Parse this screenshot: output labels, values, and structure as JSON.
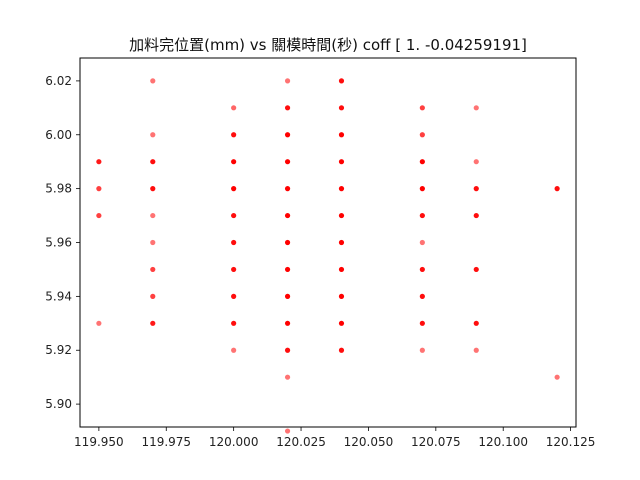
{
  "chart_data": {
    "type": "scatter",
    "title": "加料完位置(mm) vs 關模時間(秒) coff [ 1.        -0.04259191]",
    "xlabel": "",
    "ylabel": "",
    "xlim": [
      119.943,
      120.127
    ],
    "ylim": [
      5.8915,
      6.0285
    ],
    "x_ticks": [
      119.95,
      119.975,
      120.0,
      120.025,
      120.05,
      120.075,
      120.1,
      120.125
    ],
    "x_tick_labels": [
      "119.950",
      "119.975",
      "120.000",
      "120.025",
      "120.050",
      "120.075",
      "120.100",
      "120.125"
    ],
    "y_ticks": [
      5.9,
      5.92,
      5.94,
      5.96,
      5.98,
      6.0,
      6.02
    ],
    "y_tick_labels": [
      "5.90",
      "5.92",
      "5.94",
      "5.96",
      "5.98",
      "6.00",
      "6.02"
    ],
    "grid": false,
    "marker_color": "#ff0000",
    "points": [
      [
        119.95,
        5.99
      ],
      [
        119.95,
        5.98
      ],
      [
        119.95,
        5.97
      ],
      [
        119.95,
        5.93
      ],
      [
        119.97,
        6.02
      ],
      [
        119.97,
        6.0
      ],
      [
        119.97,
        5.99
      ],
      [
        119.97,
        5.98
      ],
      [
        119.97,
        5.97
      ],
      [
        119.97,
        5.96
      ],
      [
        119.97,
        5.95
      ],
      [
        119.97,
        5.94
      ],
      [
        119.97,
        5.93
      ],
      [
        120.0,
        6.01
      ],
      [
        120.0,
        6.0
      ],
      [
        120.0,
        5.99
      ],
      [
        120.0,
        5.98
      ],
      [
        120.0,
        5.97
      ],
      [
        120.0,
        5.96
      ],
      [
        120.0,
        5.95
      ],
      [
        120.0,
        5.94
      ],
      [
        120.0,
        5.93
      ],
      [
        120.0,
        5.92
      ],
      [
        120.02,
        6.02
      ],
      [
        120.02,
        6.01
      ],
      [
        120.02,
        6.0
      ],
      [
        120.02,
        5.99
      ],
      [
        120.02,
        5.98
      ],
      [
        120.02,
        5.97
      ],
      [
        120.02,
        5.96
      ],
      [
        120.02,
        5.95
      ],
      [
        120.02,
        5.94
      ],
      [
        120.02,
        5.93
      ],
      [
        120.02,
        5.92
      ],
      [
        120.02,
        5.91
      ],
      [
        120.02,
        5.89
      ],
      [
        120.04,
        6.02
      ],
      [
        120.04,
        6.01
      ],
      [
        120.04,
        6.0
      ],
      [
        120.04,
        5.99
      ],
      [
        120.04,
        5.98
      ],
      [
        120.04,
        5.97
      ],
      [
        120.04,
        5.96
      ],
      [
        120.04,
        5.95
      ],
      [
        120.04,
        5.94
      ],
      [
        120.04,
        5.93
      ],
      [
        120.04,
        5.92
      ],
      [
        120.07,
        6.01
      ],
      [
        120.07,
        6.0
      ],
      [
        120.07,
        5.99
      ],
      [
        120.07,
        5.98
      ],
      [
        120.07,
        5.97
      ],
      [
        120.07,
        5.96
      ],
      [
        120.07,
        5.95
      ],
      [
        120.07,
        5.94
      ],
      [
        120.07,
        5.93
      ],
      [
        120.07,
        5.92
      ],
      [
        120.09,
        6.01
      ],
      [
        120.09,
        5.99
      ],
      [
        120.09,
        5.98
      ],
      [
        120.09,
        5.97
      ],
      [
        120.09,
        5.95
      ],
      [
        120.09,
        5.93
      ],
      [
        120.09,
        5.92
      ],
      [
        120.12,
        5.98
      ],
      [
        120.12,
        5.91
      ]
    ],
    "point_opacity": [
      0.9,
      0.75,
      0.75,
      0.55,
      0.55,
      0.55,
      0.95,
      0.95,
      0.55,
      0.55,
      0.75,
      0.75,
      0.9,
      0.6,
      0.95,
      1.0,
      1.0,
      0.95,
      0.95,
      0.95,
      0.95,
      0.95,
      0.55,
      0.55,
      0.95,
      1.0,
      1.0,
      1.0,
      1.0,
      1.0,
      1.0,
      1.0,
      1.0,
      0.95,
      0.55,
      0.55,
      0.95,
      0.95,
      1.0,
      1.0,
      1.0,
      1.0,
      1.0,
      1.0,
      1.0,
      1.0,
      0.95,
      0.75,
      0.75,
      1.0,
      1.0,
      0.95,
      0.55,
      0.95,
      0.95,
      0.95,
      0.55,
      0.55,
      0.55,
      0.95,
      0.95,
      0.95,
      0.95,
      0.55,
      0.95,
      0.55
    ]
  }
}
